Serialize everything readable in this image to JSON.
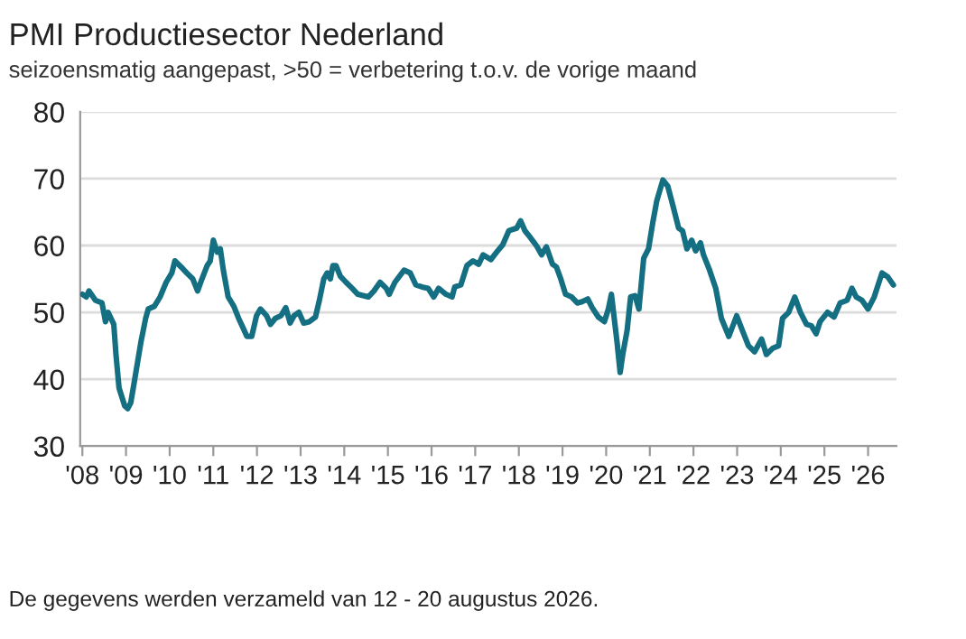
{
  "chart_data": {
    "type": "line",
    "title": "PMI Productiesector Nederland",
    "subtitle": "seizoensmatig aangepast, >50 = verbetering t.o.v. de vorige maand",
    "annotations": [
      "De gegevens werden verzameld van 12 - 20 augustus 2026."
    ],
    "series": [
      {
        "color": "#156f82",
        "x": [
          2008.0,
          2008.09,
          2008.15,
          2008.3,
          2008.45,
          2008.53,
          2008.59,
          2008.72,
          2008.77,
          2008.84,
          2008.97,
          2009.04,
          2009.11,
          2009.2,
          2009.34,
          2009.45,
          2009.51,
          2009.65,
          2009.78,
          2009.92,
          2010.05,
          2010.12,
          2010.26,
          2010.39,
          2010.53,
          2010.64,
          2010.74,
          2010.86,
          2010.93,
          2011.0,
          2011.09,
          2011.16,
          2011.23,
          2011.34,
          2011.47,
          2011.58,
          2011.68,
          2011.77,
          2011.88,
          2011.99,
          2012.08,
          2012.22,
          2012.31,
          2012.42,
          2012.55,
          2012.66,
          2012.76,
          2012.85,
          2012.96,
          2013.07,
          2013.2,
          2013.34,
          2013.43,
          2013.53,
          2013.61,
          2013.68,
          2013.74,
          2013.81,
          2013.91,
          2014.04,
          2014.18,
          2014.31,
          2014.55,
          2014.68,
          2014.82,
          2014.96,
          2015.03,
          2015.16,
          2015.37,
          2015.51,
          2015.64,
          2015.78,
          2015.92,
          2016.05,
          2016.16,
          2016.33,
          2016.47,
          2016.53,
          2016.67,
          2016.81,
          2016.95,
          2017.08,
          2017.18,
          2017.36,
          2017.49,
          2017.63,
          2017.77,
          2017.95,
          2018.04,
          2018.14,
          2018.25,
          2018.41,
          2018.52,
          2018.63,
          2018.77,
          2018.86,
          2018.96,
          2019.07,
          2019.21,
          2019.34,
          2019.45,
          2019.58,
          2019.68,
          2019.82,
          2019.96,
          2020.05,
          2020.12,
          2020.25,
          2020.32,
          2020.38,
          2020.48,
          2020.56,
          2020.66,
          2020.75,
          2020.86,
          2020.97,
          2021.07,
          2021.16,
          2021.3,
          2021.41,
          2021.52,
          2021.66,
          2021.75,
          2021.85,
          2021.96,
          2022.05,
          2022.16,
          2022.23,
          2022.37,
          2022.51,
          2022.64,
          2022.81,
          2022.99,
          2023.12,
          2023.26,
          2023.4,
          2023.56,
          2023.67,
          2023.81,
          2023.95,
          2024.04,
          2024.18,
          2024.32,
          2024.45,
          2024.59,
          2024.7,
          2024.81,
          2024.9,
          2025.07,
          2025.22,
          2025.36,
          2025.52,
          2025.63,
          2025.73,
          2025.86,
          2026.0,
          2026.14,
          2026.32,
          2026.45,
          2026.58
        ],
        "values": [
          52.7,
          52.3,
          53.2,
          51.8,
          51.4,
          48.6,
          50,
          48.2,
          43.7,
          38.7,
          36,
          35.6,
          36.5,
          40,
          45.5,
          49.1,
          50.5,
          50.9,
          52.3,
          54.5,
          55.9,
          57.7,
          56.8,
          55.9,
          55,
          53.2,
          55,
          57,
          57.7,
          60.8,
          59,
          59.5,
          56.3,
          52.3,
          50.9,
          49.1,
          47.7,
          46.4,
          46.4,
          49.5,
          50.5,
          49.5,
          48.2,
          49.1,
          49.5,
          50.7,
          48.4,
          49.5,
          50,
          48.4,
          48.6,
          49.3,
          51.8,
          55,
          55.9,
          55,
          57,
          57,
          55.4,
          54.5,
          53.6,
          52.7,
          52.3,
          53.2,
          54.5,
          53.6,
          52.7,
          54.5,
          56.3,
          55.9,
          54.1,
          53.8,
          53.6,
          52.3,
          53.6,
          52.7,
          52.3,
          53.8,
          54.1,
          57,
          57.7,
          57.2,
          58.6,
          57.9,
          59,
          60.1,
          62.2,
          62.6,
          63.7,
          62.2,
          61.3,
          59.9,
          58.6,
          59.8,
          57.2,
          56.8,
          55,
          52.7,
          52.3,
          51.4,
          51.6,
          52,
          50.7,
          49.3,
          48.6,
          50.5,
          52.7,
          45.5,
          41,
          43.7,
          47.3,
          52.3,
          52.5,
          50.5,
          58.1,
          59.5,
          63.5,
          66.7,
          69.8,
          68.9,
          66.2,
          62.6,
          62.2,
          59.5,
          60.8,
          59.2,
          60.4,
          58.6,
          56.3,
          53.6,
          49.1,
          46.4,
          49.5,
          47.3,
          45,
          44.1,
          46,
          43.7,
          44.6,
          45,
          49.1,
          50,
          52.3,
          50,
          48.2,
          48,
          46.8,
          48.6,
          50,
          49.3,
          51.4,
          51.8,
          53.6,
          52.3,
          51.8,
          50.5,
          52.3,
          55.9,
          55.3,
          54.1
        ]
      }
    ],
    "xlim": [
      2007.95,
      2026.65
    ],
    "xticks": [
      {
        "value": 2008,
        "label": "'08"
      },
      {
        "value": 2009,
        "label": "'09"
      },
      {
        "value": 2010,
        "label": "'10"
      },
      {
        "value": 2011,
        "label": "'11"
      },
      {
        "value": 2012,
        "label": "'12"
      },
      {
        "value": 2013,
        "label": "'13"
      },
      {
        "value": 2014,
        "label": "'14"
      },
      {
        "value": 2015,
        "label": "'15"
      },
      {
        "value": 2016,
        "label": "'16"
      },
      {
        "value": 2017,
        "label": "'17"
      },
      {
        "value": 2018,
        "label": "'18"
      },
      {
        "value": 2019,
        "label": "'19"
      },
      {
        "value": 2020,
        "label": "'20"
      },
      {
        "value": 2021,
        "label": "'21"
      },
      {
        "value": 2022,
        "label": "'22"
      },
      {
        "value": 2023,
        "label": "'23"
      },
      {
        "value": 2024,
        "label": "'24"
      },
      {
        "value": 2025,
        "label": "'25"
      },
      {
        "value": 2026,
        "label": "'26"
      }
    ],
    "ylim": [
      30,
      80
    ],
    "yticks": [
      30,
      40,
      50,
      60,
      70,
      80
    ],
    "grid": "y"
  }
}
